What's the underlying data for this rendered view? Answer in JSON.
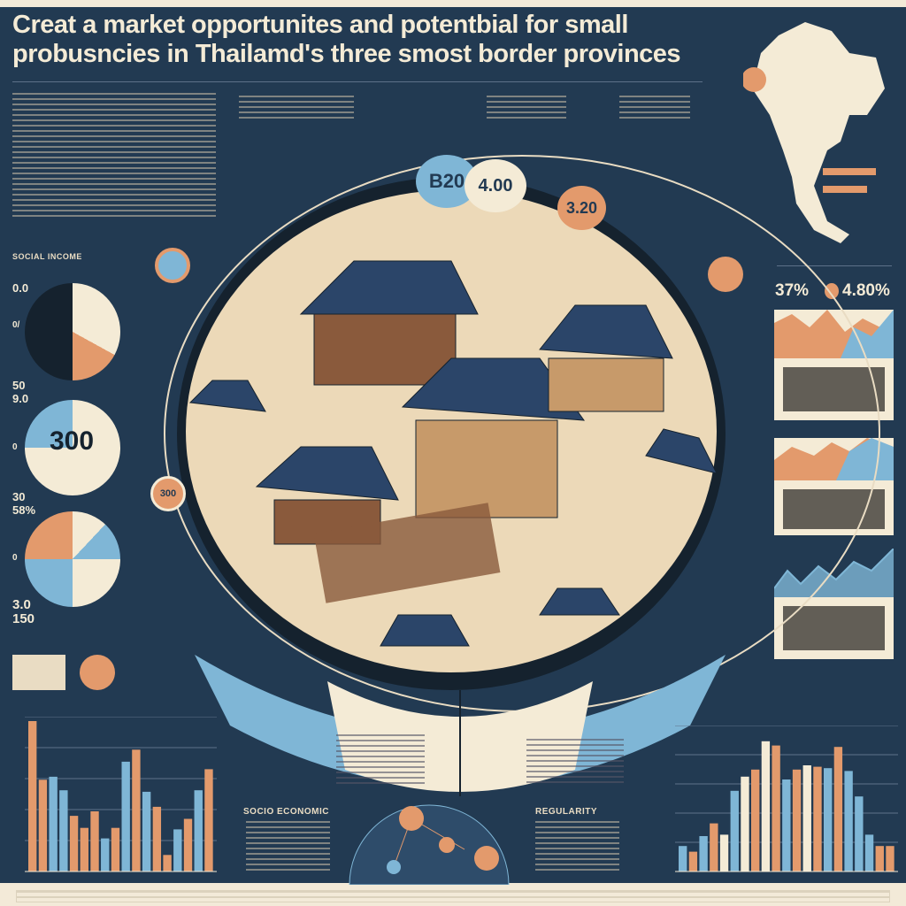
{
  "title": "Creat a market opportunites and potentbial for  small probusncies in Thailamd's three smost border provinces",
  "colors": {
    "navy": "#223a52",
    "beige": "#f4ebd6",
    "orange": "#e39a6c",
    "blue": "#7fb6d6",
    "dark": "#15222e"
  },
  "left_panel": {
    "pie1_label_top": "0.0",
    "pie1_label_side": "0/",
    "pie2_label_top": "50 9.0",
    "pie2_center_value": "300",
    "pie2_label_side": "0",
    "pie3_label_top": "30 58%",
    "pie3_label_side": "0",
    "bottom_label": "3.0 150"
  },
  "center": {
    "bubbles": [
      "B20",
      "4.00",
      "3.20"
    ],
    "badge_value": "300",
    "bottom_left_heading": "SOCIO ECONOMIC",
    "bottom_right_heading": "REGULARITY"
  },
  "right_panel": {
    "stat_left": "37%",
    "stat_right": "4.80%"
  },
  "chart_data": [
    {
      "type": "bar",
      "series": [
        {
          "values": [
            100,
            61,
            63,
            54,
            37,
            29,
            40,
            22,
            29,
            73,
            81,
            53,
            43,
            11,
            28,
            35,
            54,
            68
          ]
        }
      ],
      "colors": [
        "orange",
        "orange",
        "blue",
        "blue",
        "orange",
        "orange",
        "orange",
        "blue",
        "orange",
        "blue",
        "orange",
        "blue",
        "orange",
        "orange",
        "blue",
        "orange",
        "blue",
        "orange"
      ]
    },
    {
      "type": "bar",
      "series": [
        {
          "values": [
            18,
            14,
            25,
            34,
            26,
            57,
            67,
            72,
            92,
            89,
            65,
            72,
            75,
            74,
            73,
            88,
            71,
            53,
            26,
            18,
            18
          ]
        }
      ],
      "colors": [
        "blue",
        "orange",
        "blue",
        "orange",
        "beige",
        "blue",
        "beige",
        "orange",
        "beige",
        "orange",
        "blue",
        "orange",
        "beige",
        "orange",
        "blue",
        "orange",
        "blue",
        "blue",
        "blue",
        "orange",
        "orange"
      ]
    }
  ]
}
